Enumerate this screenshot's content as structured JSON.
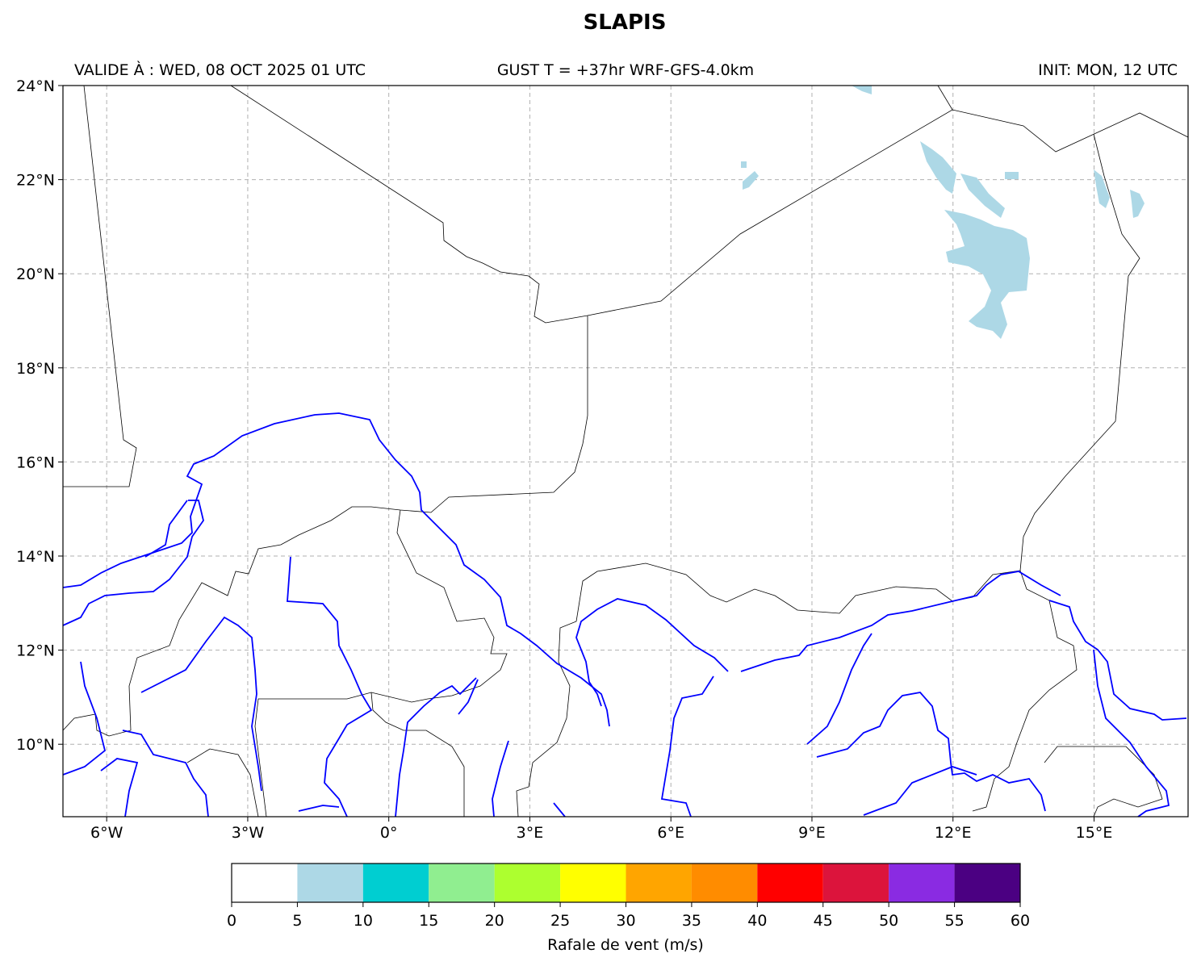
{
  "header": {
    "title": "SLAPIS",
    "valid": "VALIDE À : WED, 08 OCT 2025 01 UTC",
    "run": "GUST T = +37hr WRF-GFS-4.0km",
    "init": "INIT: MON, 12 UTC"
  },
  "map": {
    "lonlim": [
      -6.93,
      17.0
    ],
    "latlim": [
      8.46,
      24.0
    ],
    "lon_ticks": [
      {
        "value": -6,
        "label": "6°W"
      },
      {
        "value": -3,
        "label": "3°W"
      },
      {
        "value": 0,
        "label": "0°"
      },
      {
        "value": 3,
        "label": "3°E"
      },
      {
        "value": 6,
        "label": "6°E"
      },
      {
        "value": 9,
        "label": "9°E"
      },
      {
        "value": 12,
        "label": "12°E"
      },
      {
        "value": 15,
        "label": "15°E"
      }
    ],
    "lat_ticks": [
      {
        "value": 24,
        "label": "24°N"
      },
      {
        "value": 22,
        "label": "22°N"
      },
      {
        "value": 20,
        "label": "20°N"
      },
      {
        "value": 18,
        "label": "18°N"
      },
      {
        "value": 16,
        "label": "16°N"
      },
      {
        "value": 14,
        "label": "14°N"
      },
      {
        "value": 12,
        "label": "12°N"
      },
      {
        "value": 10,
        "label": "10°N"
      }
    ]
  },
  "colorbar": {
    "label": "Rafale de vent (m/s)",
    "bounds": [
      0,
      5,
      10,
      15,
      20,
      25,
      30,
      35,
      40,
      45,
      50,
      55,
      60
    ],
    "colors": [
      "#ffffff",
      "#add8e6",
      "#00ced1",
      "#90ee90",
      "#adff2f",
      "#ffff00",
      "#ffa500",
      "#ff8c00",
      "#ff0000",
      "#dc143c",
      "#8a2be2",
      "#4b0082"
    ]
  }
}
